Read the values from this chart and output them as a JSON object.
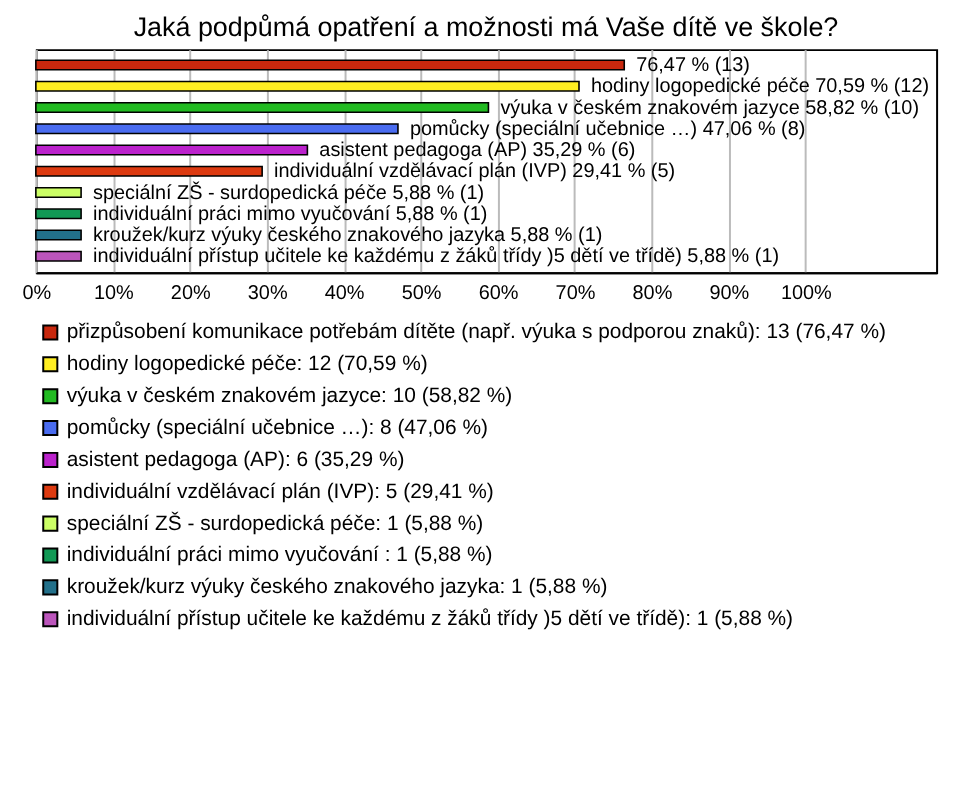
{
  "chart_data": {
    "type": "bar",
    "orientation": "horizontal",
    "title": "Jaká podpůmá opatření a možnosti má Vaše dítě ve škole?",
    "categories": [
      null
    ],
    "series": [
      {
        "name": "přizpůsobení komunikace potřebám dítěte (např. výuka s podporou znaků): 13 (76,47 %)",
        "color": "#c8280e",
        "values": [
          76.47
        ],
        "value_labels": [
          "76,47 % (13)"
        ]
      },
      {
        "name": "hodiny logopedické péče: 12 (70,59 %)",
        "color": "#ffee22",
        "values": [
          70.59
        ],
        "value_labels": [
          "hodiny logopedické péče 70,59 % (12)"
        ]
      },
      {
        "name": "výuka v českém znakovém jazyce: 10 (58,82 %)",
        "color": "#22bb22",
        "values": [
          58.82
        ],
        "value_labels": [
          "výuka v českém znakovém jazyce 58,82 % (10)"
        ]
      },
      {
        "name": "pomůcky (speciální učebnice …): 8 (47,06 %)",
        "color": "#4a6cf0",
        "values": [
          47.06
        ],
        "value_labels": [
          "pomůcky (speciální učebnice …) 47,06 % (8)"
        ]
      },
      {
        "name": "asistent pedagoga (AP): 6 (35,29 %)",
        "color": "#bb22cc",
        "values": [
          35.29
        ],
        "value_labels": [
          "asistent pedagoga (AP) 35,29 % (6)"
        ]
      },
      {
        "name": "individuální vzdělávací plán (IVP): 5 (29,41 %)",
        "color": "#dd3a10",
        "values": [
          29.41
        ],
        "value_labels": [
          "individuální vzdělávací plán (IVP) 29,41 % (5)"
        ]
      },
      {
        "name": "speciální ZŠ - surdopedická péče: 1 (5,88 %)",
        "color": "#ccff66",
        "values": [
          5.88
        ],
        "value_labels": [
          "speciální ZŠ - surdopedická péče 5,88 % (1)"
        ]
      },
      {
        "name": "individuální práci mimo vyučování : 1 (5,88 %)",
        "color": "#119955",
        "values": [
          5.88
        ],
        "value_labels": [
          "individuální práci mimo vyučování  5,88 % (1)"
        ]
      },
      {
        "name": "kroužek/kurz výuky českého znakového jazyka: 1 (5,88 %)",
        "color": "#22708a",
        "values": [
          5.88
        ],
        "value_labels": [
          "kroužek/kurz výuky českého znakového jazyka 5,88 % (1)"
        ]
      },
      {
        "name": "individuální přístup učitele ke každému z žáků třídy )5 dětí ve třídě): 1 (5,88 %)",
        "color": "#bb55bb",
        "values": [
          5.88
        ],
        "value_labels": [
          "individuální přístup učitele ke každému z žáků třídy )5 dětí ve třídě) 5,88 % (1)"
        ]
      }
    ],
    "xlim": [
      0,
      117
    ],
    "xticks": [
      {
        "value": 0,
        "label": "0%"
      },
      {
        "value": 10,
        "label": "10%"
      },
      {
        "value": 20,
        "label": "20%"
      },
      {
        "value": 30,
        "label": "30%"
      },
      {
        "value": 40,
        "label": "40%"
      },
      {
        "value": 50,
        "label": "50%"
      },
      {
        "value": 60,
        "label": "60%"
      },
      {
        "value": 70,
        "label": "70%"
      },
      {
        "value": 80,
        "label": "80%"
      },
      {
        "value": 90,
        "label": "90%"
      },
      {
        "value": 100,
        "label": "100%"
      }
    ],
    "grid": "x",
    "legend": "bottom"
  }
}
